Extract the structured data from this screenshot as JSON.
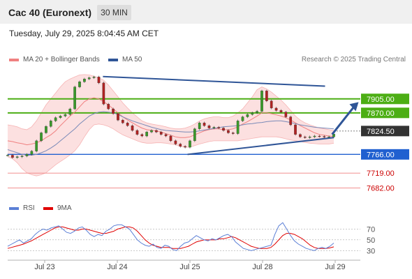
{
  "header": {
    "title": "Cac 40 (Euronext)",
    "timeframe_button": "30 MIN",
    "timestamp": "Tuesday, July 29, 2025 8:04:45 AM CET"
  },
  "legend": {
    "ma20": "MA 20 + Bollinger Bands",
    "ma50": "MA 50",
    "credit": "Research © 2025 Trading Central",
    "ma20_color": "#f08080",
    "ma50_color": "#2f5597"
  },
  "rsi_legend": {
    "rsi": "RSI",
    "ma9": "9MA",
    "rsi_color": "#5b7fd6",
    "ma9_color": "#e00000"
  },
  "chart_data": [
    {
      "type": "candlestick",
      "ylim": [
        7660,
        7985
      ],
      "x_ticks": [
        "Jul 23",
        "Jul 24",
        "Jul 25",
        "Jul 28",
        "Jul 29"
      ],
      "level_labels": [
        {
          "value": 7905.0,
          "label": "7905.00",
          "style": "green-box",
          "color": "#4cae14"
        },
        {
          "value": 7870.0,
          "label": "7870.00",
          "style": "green-box",
          "color": "#4cae14"
        },
        {
          "value": 7824.5,
          "label": "7824.50",
          "style": "dark-box",
          "color": "#333333"
        },
        {
          "value": 7766.0,
          "label": "7766.00",
          "style": "blue-box",
          "color": "#2060d0"
        },
        {
          "value": 7719.0,
          "label": "7719.00",
          "style": "red-text",
          "color": "#cc0000"
        },
        {
          "value": 7682.0,
          "label": "7682.00",
          "style": "red-text",
          "color": "#cc0000"
        }
      ],
      "horizontal_lines": [
        {
          "value": 7905,
          "color": "#4cae14"
        },
        {
          "value": 7870,
          "color": "#4cae14"
        },
        {
          "value": 7766,
          "color": "#2060d0"
        },
        {
          "value": 7719,
          "color": "#f08080"
        },
        {
          "value": 7682,
          "color": "#f08080"
        }
      ],
      "trendlines": [
        {
          "from": {
            "x": 0.27,
            "y": 7961
          },
          "to": {
            "x": 0.9,
            "y": 7937
          },
          "color": "#2f5597"
        },
        {
          "from": {
            "x": 0.51,
            "y": 7766
          },
          "to": {
            "x": 0.925,
            "y": 7808
          },
          "color": "#2f5597"
        }
      ],
      "forecast_arrow": {
        "from": {
          "x": 0.92,
          "y": 7816
        },
        "to": {
          "x": 0.995,
          "y": 7897
        },
        "color": "#2f5597"
      },
      "price_series": [
        7764,
        7758,
        7760,
        7762,
        7766,
        7774,
        7800,
        7820,
        7836,
        7850,
        7858,
        7862,
        7866,
        7880,
        7935,
        7948,
        7955,
        7958,
        7960,
        7945,
        7892,
        7880,
        7868,
        7852,
        7845,
        7838,
        7826,
        7816,
        7812,
        7822,
        7826,
        7822,
        7816,
        7812,
        7800,
        7792,
        7786,
        7784,
        7800,
        7830,
        7845,
        7838,
        7832,
        7834,
        7832,
        7826,
        7820,
        7818,
        7850,
        7860,
        7866,
        7870,
        7874,
        7925,
        7900,
        7882,
        7876,
        7872,
        7860,
        7840,
        7816,
        7810,
        7808,
        7810,
        7812,
        7811,
        7809,
        7810,
        7817
      ],
      "ma20": [
        7800,
        7798,
        7795,
        7793,
        7790,
        7792,
        7795,
        7800,
        7808,
        7815,
        7825,
        7838,
        7850,
        7862,
        7872,
        7885,
        7898,
        7905,
        7908,
        7905,
        7898,
        7890,
        7880,
        7870,
        7860,
        7852,
        7845,
        7838,
        7832,
        7828,
        7826,
        7825,
        7822,
        7818,
        7814,
        7810,
        7808,
        7808,
        7810,
        7815,
        7820,
        7825,
        7828,
        7830,
        7830,
        7828,
        7828,
        7830,
        7835,
        7842,
        7848,
        7855,
        7862,
        7870,
        7870,
        7868,
        7865,
        7862,
        7858,
        7852,
        7845,
        7838,
        7832,
        7826,
        7820,
        7816,
        7814,
        7812,
        7811
      ],
      "bb_upper": [
        7840,
        7838,
        7835,
        7830,
        7828,
        7835,
        7850,
        7870,
        7890,
        7905,
        7920,
        7935,
        7948,
        7955,
        7960,
        7965,
        7966,
        7965,
        7962,
        7958,
        7952,
        7940,
        7925,
        7910,
        7895,
        7882,
        7870,
        7860,
        7850,
        7845,
        7842,
        7840,
        7838,
        7835,
        7832,
        7830,
        7830,
        7832,
        7836,
        7842,
        7850,
        7855,
        7858,
        7860,
        7860,
        7858,
        7858,
        7862,
        7870,
        7880,
        7895,
        7910,
        7928,
        7935,
        7930,
        7922,
        7912,
        7902,
        7890,
        7876,
        7862,
        7852,
        7845,
        7840,
        7836,
        7832,
        7830,
        7828,
        7826
      ],
      "bb_lower": [
        7760,
        7755,
        7745,
        7730,
        7720,
        7715,
        7712,
        7715,
        7720,
        7730,
        7740,
        7748,
        7756,
        7765,
        7775,
        7790,
        7810,
        7828,
        7840,
        7842,
        7840,
        7836,
        7830,
        7822,
        7815,
        7810,
        7805,
        7800,
        7796,
        7794,
        7794,
        7795,
        7795,
        7794,
        7792,
        7790,
        7786,
        7784,
        7784,
        7788,
        7792,
        7795,
        7798,
        7800,
        7800,
        7800,
        7800,
        7800,
        7800,
        7802,
        7804,
        7806,
        7808,
        7810,
        7810,
        7810,
        7810,
        7808,
        7805,
        7802,
        7800,
        7798,
        7796,
        7794,
        7793,
        7792,
        7792,
        7792,
        7794
      ],
      "ma50": [
        7778,
        7774,
        7770,
        7766,
        7764,
        7764,
        7766,
        7770,
        7775,
        7782,
        7790,
        7800,
        7810,
        7820,
        7830,
        7842,
        7852,
        7862,
        7868,
        7872,
        7873,
        7872,
        7870,
        7866,
        7860,
        7855,
        7850,
        7846,
        7842,
        7838,
        7834,
        7831,
        7828,
        7826,
        7825,
        7824,
        7823,
        7822,
        7822,
        7823,
        7825,
        7827,
        7829,
        7831,
        7833,
        7835,
        7836,
        7837,
        7838,
        7840,
        7842,
        7843,
        7845,
        7846,
        7848,
        7849,
        7850,
        7850,
        7848,
        7846,
        7843,
        7840,
        7838,
        7836,
        7834,
        7833,
        7832,
        7831,
        7830
      ]
    },
    {
      "type": "line",
      "name": "RSI panel",
      "ylim": [
        20,
        90
      ],
      "y_ticks": [
        70,
        50,
        30
      ],
      "rsi": [
        38,
        42,
        46,
        50,
        44,
        48,
        52,
        60,
        66,
        70,
        68,
        72,
        74,
        76,
        70,
        64,
        62,
        66,
        72,
        74,
        68,
        60,
        56,
        60,
        58,
        66,
        70,
        76,
        78,
        78,
        74,
        70,
        60,
        50,
        44,
        40,
        38,
        42,
        36,
        34,
        40,
        38,
        32,
        30,
        38,
        44,
        46,
        52,
        58,
        54,
        50,
        48,
        52,
        50,
        54,
        58,
        60,
        56,
        46,
        40,
        34,
        32,
        30,
        32,
        34,
        36,
        38,
        40,
        60,
        76,
        82,
        70,
        58,
        48,
        42,
        38,
        34,
        32,
        30,
        34,
        36,
        34,
        38,
        44
      ],
      "ma9": [
        34,
        36,
        38,
        40,
        42,
        45,
        48,
        52,
        56,
        60,
        64,
        68,
        72,
        74,
        74,
        72,
        70,
        68,
        68,
        70,
        70,
        68,
        66,
        64,
        62,
        62,
        64,
        66,
        70,
        72,
        74,
        74,
        72,
        66,
        58,
        50,
        44,
        40,
        38,
        36,
        36,
        36,
        34,
        34,
        34,
        36,
        38,
        42,
        46,
        48,
        50,
        50,
        50,
        50,
        52,
        52,
        54,
        56,
        54,
        50,
        46,
        42,
        38,
        36,
        34,
        34,
        34,
        36,
        42,
        50,
        58,
        62,
        62,
        60,
        56,
        52,
        46,
        40,
        36,
        34,
        34,
        34,
        35,
        37
      ]
    }
  ]
}
